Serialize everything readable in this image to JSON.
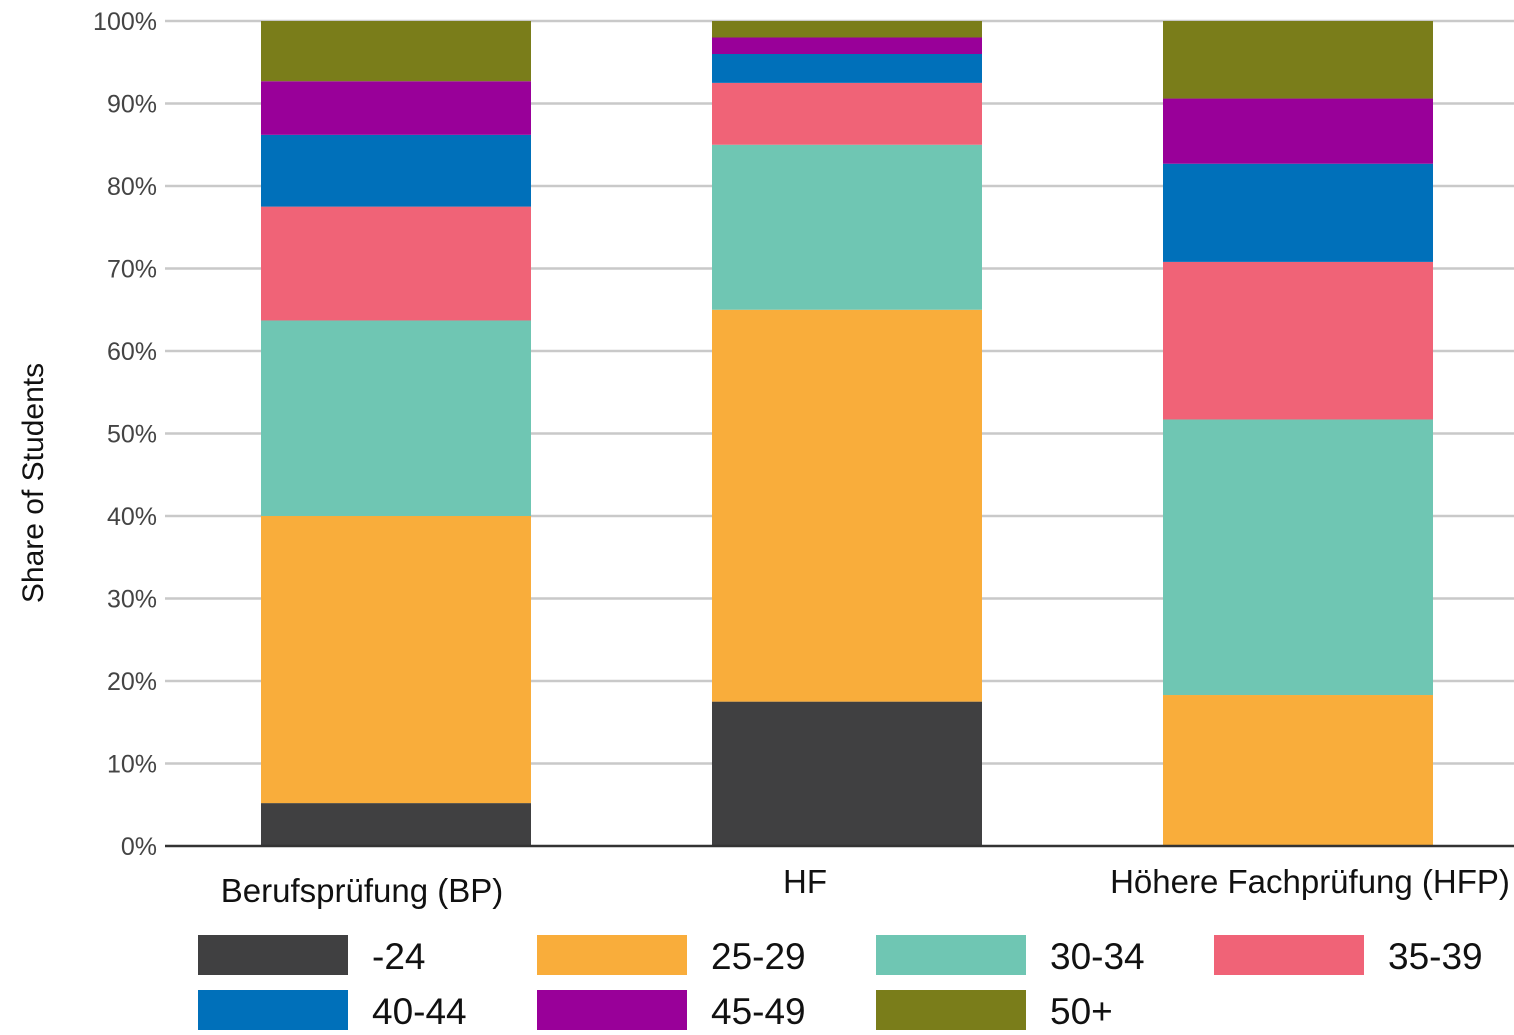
{
  "chart_data": {
    "type": "bar",
    "stacked": true,
    "title": "",
    "xlabel": "",
    "ylabel": "Share of Students",
    "ylim": [
      0,
      100
    ],
    "yticks": [
      "0%",
      "10%",
      "20%",
      "30%",
      "40%",
      "50%",
      "60%",
      "70%",
      "80%",
      "90%",
      "100%"
    ],
    "grid": "horizontal",
    "legend_position": "bottom",
    "categories": [
      "Berufsprüfung (BP)",
      "HF",
      "Höhere Fachprüfung (HFP)"
    ],
    "series": [
      {
        "name": "-24",
        "color": "#404041",
        "values": [
          5.2,
          17.5,
          0
        ]
      },
      {
        "name": "25-29",
        "color": "#f9ad3b",
        "values": [
          34.8,
          47.5,
          18.3
        ]
      },
      {
        "name": "30-34",
        "color": "#6fc6b3",
        "values": [
          23.7,
          20.0,
          33.4
        ]
      },
      {
        "name": "35-39",
        "color": "#f06377",
        "values": [
          13.8,
          7.5,
          19.1
        ]
      },
      {
        "name": "40-44",
        "color": "#0070ba",
        "values": [
          8.7,
          3.5,
          11.9
        ]
      },
      {
        "name": "45-49",
        "color": "#990099",
        "values": [
          6.5,
          2.0,
          7.9
        ]
      },
      {
        "name": "50+",
        "color": "#7a7d1a",
        "values": [
          7.3,
          2.0,
          9.4
        ]
      }
    ]
  }
}
